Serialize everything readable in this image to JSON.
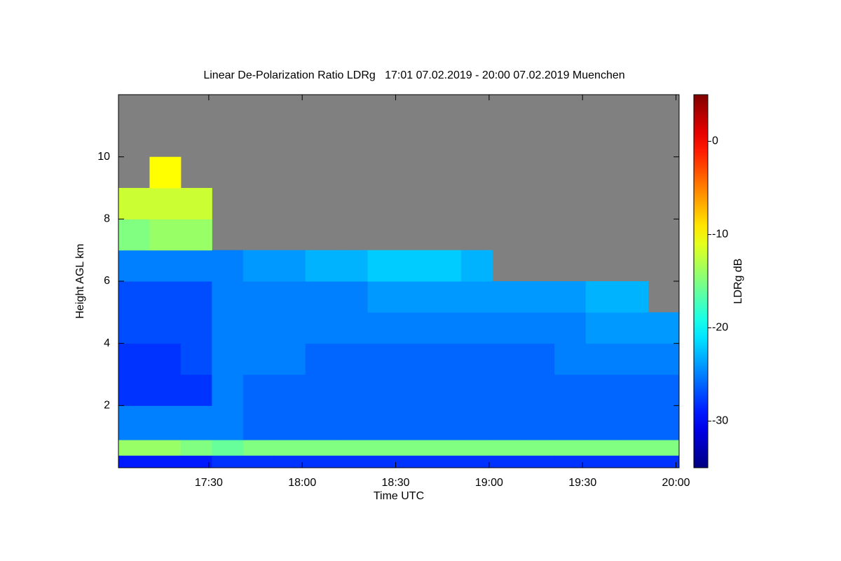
{
  "chart_data": {
    "type": "heatmap",
    "title": "Linear De-Polarization Ratio LDRg   17:01 07.02.2019 - 20:00 07.02.2019 Muenchen",
    "x_label": "Time UTC",
    "y_label": "Height AGL km",
    "colorbar_label": "LDRg dB",
    "colormap": "jet",
    "no_data_color": "#808080",
    "xlim": [
      1021,
      1201
    ],
    "xticks": [
      {
        "value": 1050,
        "label": "17:30"
      },
      {
        "value": 1080,
        "label": "18:00"
      },
      {
        "value": 1110,
        "label": "18:30"
      },
      {
        "value": 1140,
        "label": "19:00"
      },
      {
        "value": 1170,
        "label": "19:30"
      },
      {
        "value": 1200,
        "label": "20:00"
      }
    ],
    "ylim": [
      0,
      12
    ],
    "yticks": [
      2,
      4,
      6,
      8,
      10
    ],
    "zlim": [
      -35,
      5
    ],
    "zticks": [
      0,
      -10,
      -20,
      -30
    ],
    "x_edges": [
      1021,
      1031,
      1041,
      1051,
      1061,
      1071,
      1081,
      1091,
      1101,
      1111,
      1121,
      1131,
      1141,
      1151,
      1161,
      1171,
      1181,
      1191,
      1201
    ],
    "y_edges": [
      0,
      0.4,
      0.9,
      2,
      3,
      4,
      5,
      6,
      7,
      8,
      9,
      10,
      11,
      12
    ],
    "z": [
      [
        -29,
        -14,
        -25,
        -28,
        -28,
        -27,
        -27,
        -25,
        -15,
        -12,
        null,
        null,
        null
      ],
      [
        -29,
        -14,
        -25,
        -28,
        -28,
        -27,
        -27,
        -25,
        -14,
        -12,
        -10,
        null,
        null
      ],
      [
        -29,
        -15,
        -25,
        -28,
        -27,
        -27,
        -27,
        -25,
        -14,
        -12,
        null,
        null,
        null
      ],
      [
        -28,
        -16,
        -25,
        -25,
        -25,
        -25,
        -25,
        -25,
        null,
        null,
        null,
        null,
        null
      ],
      [
        -28,
        -15,
        -26,
        -26,
        -25,
        -25,
        -25,
        -24,
        null,
        null,
        null,
        null,
        null
      ],
      [
        -28,
        -15,
        -26,
        -26,
        -25,
        -25,
        -25,
        -24,
        null,
        null,
        null,
        null,
        null
      ],
      [
        -28,
        -15,
        -26,
        -26,
        -26,
        -25,
        -25,
        -23,
        null,
        null,
        null,
        null,
        null
      ],
      [
        -28,
        -15,
        -26,
        -26,
        -26,
        -25,
        -25,
        -23,
        null,
        null,
        null,
        null,
        null
      ],
      [
        -28,
        -15,
        -26,
        -26,
        -26,
        -25,
        -24,
        -22,
        null,
        null,
        null,
        null,
        null
      ],
      [
        -28,
        -15,
        -26,
        -26,
        -26,
        -25,
        -24,
        -22,
        null,
        null,
        null,
        null,
        null
      ],
      [
        -28,
        -15,
        -26,
        -26,
        -26,
        -25,
        -24,
        -22,
        null,
        null,
        null,
        null,
        null
      ],
      [
        -28,
        -15,
        -26,
        -26,
        -26,
        -25,
        -24,
        -23,
        null,
        null,
        null,
        null,
        null
      ],
      [
        -28,
        -15,
        -26,
        -26,
        -26,
        -25,
        -24,
        null,
        null,
        null,
        null,
        null,
        null
      ],
      [
        -28,
        -15,
        -26,
        -26,
        -26,
        -25,
        -24,
        null,
        null,
        null,
        null,
        null,
        null
      ],
      [
        -28,
        -15,
        -26,
        -26,
        -25,
        -25,
        -24,
        null,
        null,
        null,
        null,
        null,
        null
      ],
      [
        -28,
        -15,
        -26,
        -26,
        -25,
        -24,
        -23,
        null,
        null,
        null,
        null,
        null,
        null
      ],
      [
        -28,
        -15,
        -26,
        -26,
        -25,
        -24,
        -23,
        null,
        null,
        null,
        null,
        null,
        null
      ],
      [
        -28,
        -15,
        -26,
        -26,
        -25,
        -24,
        null,
        null,
        null,
        null,
        null,
        null,
        null
      ]
    ]
  }
}
